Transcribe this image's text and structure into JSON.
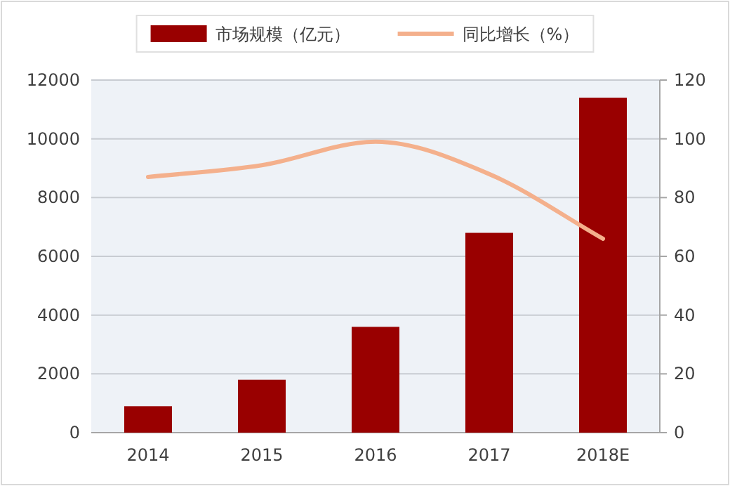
{
  "chart_data": {
    "type": "bar",
    "categories": [
      "2014",
      "2015",
      "2016",
      "2017",
      "2018E"
    ],
    "series": [
      {
        "name": "市场规模（亿元）",
        "color": "#990000",
        "values": [
          900,
          1800,
          3600,
          6800,
          11400
        ]
      },
      {
        "name": "同比增长（%）",
        "type": "line",
        "axis": "y2",
        "color": "#f4b08c",
        "values": [
          87,
          91,
          99,
          88,
          66
        ]
      }
    ],
    "ylim": [
      0,
      12000
    ],
    "yticks": [
      0,
      2000,
      4000,
      6000,
      8000,
      10000,
      12000
    ],
    "y2lim": [
      0,
      120
    ],
    "y2ticks": [
      0,
      20,
      40,
      60,
      80,
      100,
      120
    ],
    "grid": "y",
    "legend": "top"
  }
}
